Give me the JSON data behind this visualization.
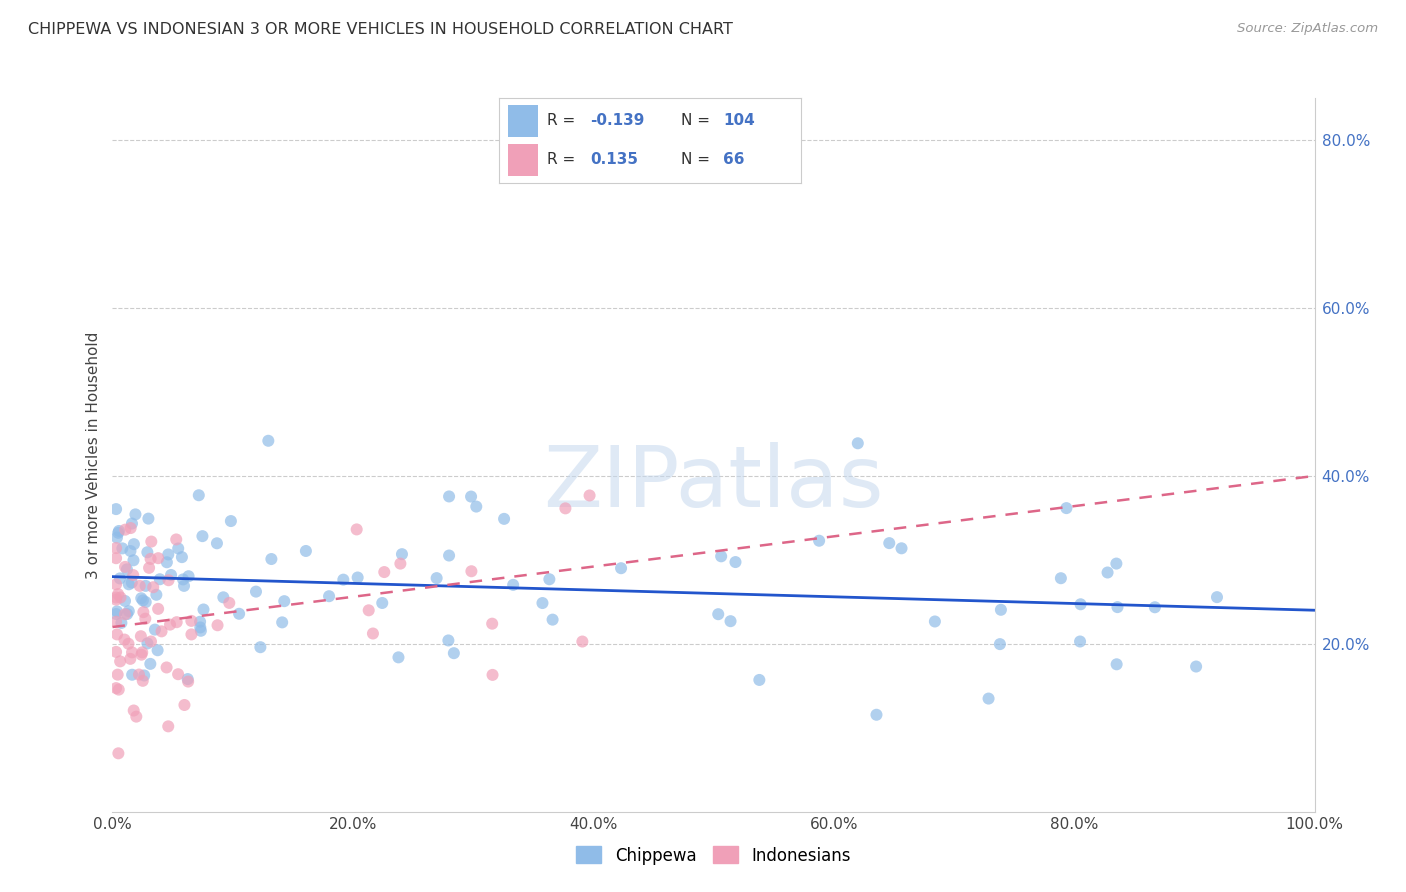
{
  "title": "CHIPPEWA VS INDONESIAN 3 OR MORE VEHICLES IN HOUSEHOLD CORRELATION CHART",
  "source": "Source: ZipAtlas.com",
  "ylabel": "3 or more Vehicles in Household",
  "watermark": "ZIPatlas",
  "chippewa_R": -0.139,
  "chippewa_N": 104,
  "indonesian_R": 0.135,
  "indonesian_N": 66,
  "xlim": [
    0,
    100
  ],
  "ylim": [
    0,
    85
  ],
  "ytick_vals": [
    20,
    40,
    60,
    80
  ],
  "xtick_vals": [
    0,
    20,
    40,
    60,
    80,
    100
  ],
  "chippewa_color": "#90bce8",
  "indonesian_color": "#f0a0b8",
  "chippewa_line_color": "#2255cc",
  "indonesian_line_color": "#dd6688",
  "grid_color": "#cccccc",
  "bg_color": "#ffffff",
  "title_color": "#333333",
  "source_color": "#999999",
  "right_axis_color": "#4472c4",
  "legend_num_color": "#4472c4",
  "chip_line_start_y": 28.0,
  "chip_line_end_y": 24.0,
  "indo_line_start_y": 22.0,
  "indo_line_end_y": 40.0
}
